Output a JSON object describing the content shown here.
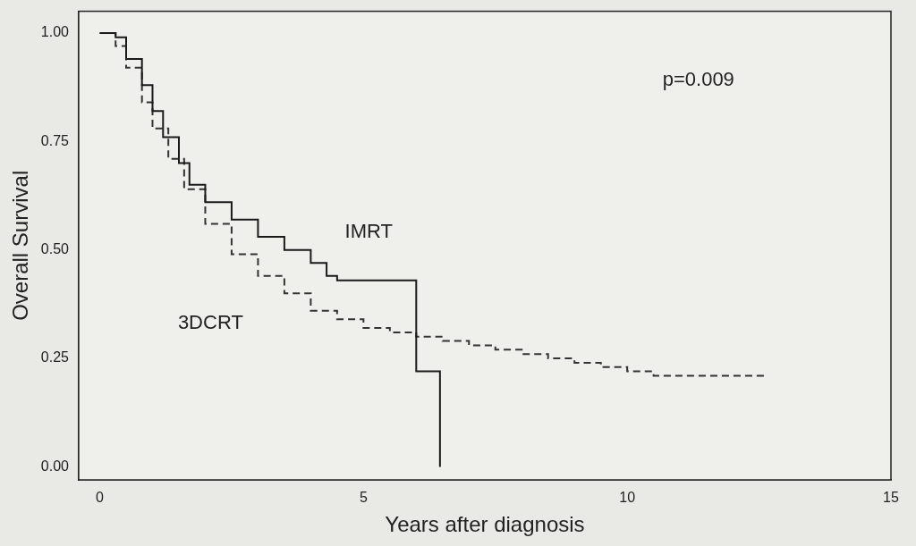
{
  "chart_data": {
    "type": "line",
    "x_label": "Years after diagnosis",
    "y_label": "Overall Survival",
    "xlim": [
      -0.4,
      15
    ],
    "ylim": [
      -0.03,
      1.05
    ],
    "xticks": [
      0,
      5,
      10,
      15
    ],
    "yticks": [
      {
        "value": 0,
        "label": "0.00"
      },
      {
        "value": 0.25,
        "label": "0.25"
      },
      {
        "value": 0.5,
        "label": "0.50"
      },
      {
        "value": 0.75,
        "label": "0.75"
      },
      {
        "value": 1,
        "label": "1.00"
      }
    ],
    "grid": false,
    "series": [
      {
        "name": "IMRT",
        "color": "#1a1a1a",
        "line_style": "solid",
        "x": [
          0,
          0.3,
          0.5,
          0.8,
          1.0,
          1.2,
          1.5,
          1.7,
          2.0,
          2.5,
          3.0,
          3.5,
          4.0,
          4.3,
          4.5,
          5.0,
          5.5,
          6.0,
          6.45
        ],
        "values": [
          1,
          0.99,
          0.94,
          0.88,
          0.82,
          0.76,
          0.7,
          0.65,
          0.61,
          0.57,
          0.53,
          0.5,
          0.47,
          0.44,
          0.43,
          0.43,
          0.43,
          0.22,
          0.0
        ]
      },
      {
        "name": "3DCRT",
        "color": "#333333",
        "line_style": "dashed",
        "x": [
          0,
          0.3,
          0.5,
          0.8,
          1.0,
          1.3,
          1.6,
          2.0,
          2.5,
          3.0,
          3.5,
          4.0,
          4.5,
          5.0,
          5.5,
          6.0,
          6.5,
          7.0,
          7.5,
          8.0,
          8.5,
          9.0,
          9.5,
          10.0,
          10.5,
          11.0,
          12.0,
          12.6
        ],
        "values": [
          1,
          0.97,
          0.92,
          0.84,
          0.78,
          0.71,
          0.64,
          0.56,
          0.49,
          0.44,
          0.4,
          0.36,
          0.34,
          0.32,
          0.31,
          0.3,
          0.29,
          0.28,
          0.27,
          0.26,
          0.25,
          0.24,
          0.23,
          0.22,
          0.21,
          0.21,
          0.21,
          0.21
        ]
      }
    ],
    "annotations": [
      {
        "text": "p=0.009",
        "x": 11.35,
        "y": 0.89
      },
      {
        "text": "IMRT",
        "x": 5.1,
        "y": 0.54
      },
      {
        "text": "3DCRT",
        "x": 2.1,
        "y": 0.33
      }
    ],
    "legend": false
  }
}
